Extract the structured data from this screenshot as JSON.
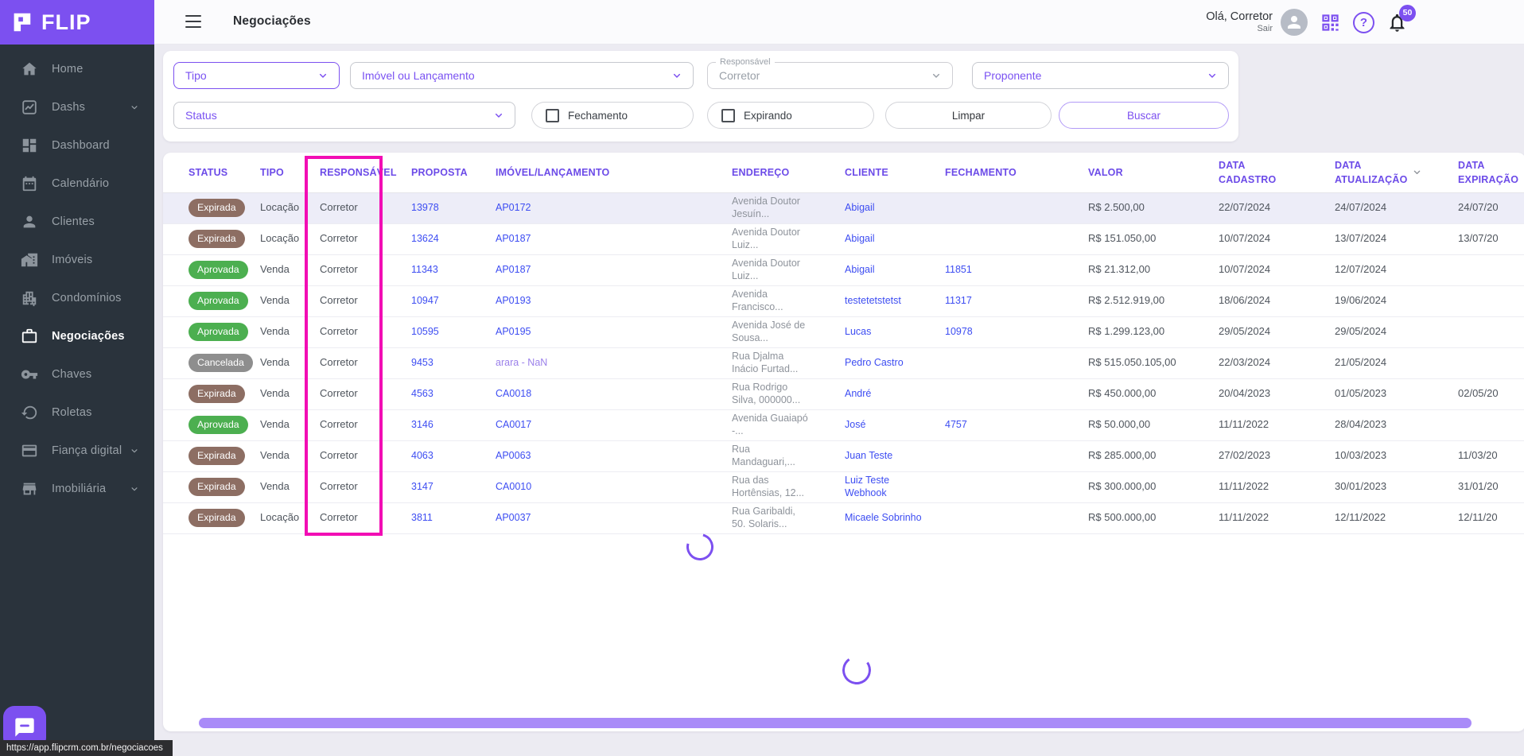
{
  "app": {
    "brand": "FLIP",
    "status_bar_url": "https://app.flipcrm.com.br/negociacoes"
  },
  "colors": {
    "accent": "#7C50F0",
    "header_text": "#6C4BE8",
    "link": "#3D4DF2",
    "link_visited": "#9B80EA",
    "highlight": "#F20DB4",
    "scrollbar": "#A98BF8",
    "filter_text": "#7A52F2",
    "status_colors": {
      "Expirada": "#8D6E63",
      "Aprovada": "#4CAF50",
      "Cancelada": "#8E8E8E"
    }
  },
  "header": {
    "title": "Negociações",
    "greeting": "Olá, Corretor",
    "logout_label": "Sair",
    "notifications_count": "50"
  },
  "sidebar": {
    "items": [
      {
        "label": "Home",
        "icon": "home-icon"
      },
      {
        "label": "Dashs",
        "icon": "chart-icon",
        "expandable": true
      },
      {
        "label": "Dashboard",
        "icon": "dashboard-icon"
      },
      {
        "label": "Calendário",
        "icon": "calendar-icon"
      },
      {
        "label": "Clientes",
        "icon": "person-icon"
      },
      {
        "label": "Imóveis",
        "icon": "house-icon"
      },
      {
        "label": "Condomínios",
        "icon": "building-icon"
      },
      {
        "label": "Negociações",
        "icon": "briefcase-icon",
        "active": true
      },
      {
        "label": "Chaves",
        "icon": "key-icon"
      },
      {
        "label": "Roletas",
        "icon": "history-icon"
      },
      {
        "label": "Fiança digital",
        "icon": "card-icon",
        "expandable": true
      },
      {
        "label": "Imobiliária",
        "icon": "storefront-icon",
        "expandable": true
      }
    ]
  },
  "filters": {
    "tipo": "Tipo",
    "imovel": "Imóvel ou Lançamento",
    "responsavel_label": "Responsável",
    "responsavel_value": "Corretor",
    "proponente": "Proponente",
    "status": "Status",
    "fechamento": "Fechamento",
    "expirando": "Expirando",
    "limpar": "Limpar",
    "buscar": "Buscar"
  },
  "table": {
    "columns": [
      "STATUS",
      "TIPO",
      "RESPONSÁVEL",
      "PROPOSTA",
      "IMÓVEL/LANÇAMENTO",
      "ENDEREÇO",
      "CLIENTE",
      "FECHAMENTO",
      "VALOR",
      "DATA CADASTRO",
      "DATA ATUALIZAÇÃO",
      "DATA EXPIRAÇÃO"
    ],
    "sorted_column": "DATA ATUALIZAÇÃO",
    "highlighted_column": "RESPONSÁVEL",
    "loading": true,
    "rows": [
      {
        "status": "Expirada",
        "tipo": "Locação",
        "responsavel": "Corretor",
        "proposta": "13978",
        "imovel": "AP0172",
        "endereco": "Avenida Doutor Jesuín...",
        "cliente": "Abigail",
        "fechamento": "",
        "valor": "R$ 2.500,00",
        "data_cadastro": "22/07/2024",
        "data_atualizacao": "24/07/2024",
        "data_expiracao": "24/07/20"
      },
      {
        "status": "Expirada",
        "tipo": "Locação",
        "responsavel": "Corretor",
        "proposta": "13624",
        "imovel": "AP0187",
        "endereco": "Avenida Doutor Luiz...",
        "cliente": "Abigail",
        "fechamento": "",
        "valor": "R$ 151.050,00",
        "data_cadastro": "10/07/2024",
        "data_atualizacao": "13/07/2024",
        "data_expiracao": "13/07/20"
      },
      {
        "status": "Aprovada",
        "tipo": "Venda",
        "responsavel": "Corretor",
        "proposta": "11343",
        "imovel": "AP0187",
        "endereco": "Avenida Doutor Luiz...",
        "cliente": "Abigail",
        "fechamento": "11851",
        "valor": "R$ 21.312,00",
        "data_cadastro": "10/07/2024",
        "data_atualizacao": "12/07/2024",
        "data_expiracao": ""
      },
      {
        "status": "Aprovada",
        "tipo": "Venda",
        "responsavel": "Corretor",
        "proposta": "10947",
        "imovel": "AP0193",
        "endereco": "Avenida Francisco...",
        "cliente": "testetetstetst",
        "fechamento": "11317",
        "valor": "R$ 2.512.919,00",
        "data_cadastro": "18/06/2024",
        "data_atualizacao": "19/06/2024",
        "data_expiracao": ""
      },
      {
        "status": "Aprovada",
        "tipo": "Venda",
        "responsavel": "Corretor",
        "proposta": "10595",
        "imovel": "AP0195",
        "endereco": "Avenida José de Sousa...",
        "cliente": "Lucas",
        "fechamento": "10978",
        "valor": "R$ 1.299.123,00",
        "data_cadastro": "29/05/2024",
        "data_atualizacao": "29/05/2024",
        "data_expiracao": ""
      },
      {
        "status": "Cancelada",
        "tipo": "Venda",
        "responsavel": "Corretor",
        "proposta": "9453",
        "imovel": "arara - NaN",
        "imovel_visited": true,
        "endereco": "Rua Djalma Inácio Furtad...",
        "cliente": "Pedro Castro",
        "fechamento": "",
        "valor": "R$ 515.050.105,00",
        "data_cadastro": "22/03/2024",
        "data_atualizacao": "21/05/2024",
        "data_expiracao": ""
      },
      {
        "status": "Expirada",
        "tipo": "Venda",
        "responsavel": "Corretor",
        "proposta": "4563",
        "imovel": "CA0018",
        "endereco": "Rua Rodrigo Silva, 000000...",
        "cliente": "André",
        "fechamento": "",
        "valor": "R$ 450.000,00",
        "data_cadastro": "20/04/2023",
        "data_atualizacao": "01/05/2023",
        "data_expiracao": "02/05/20"
      },
      {
        "status": "Aprovada",
        "tipo": "Venda",
        "responsavel": "Corretor",
        "proposta": "3146",
        "imovel": "CA0017",
        "endereco": "Avenida Guaiapó -...",
        "cliente": "José",
        "fechamento": "4757",
        "valor": "R$ 50.000,00",
        "data_cadastro": "11/11/2022",
        "data_atualizacao": "28/04/2023",
        "data_expiracao": ""
      },
      {
        "status": "Expirada",
        "tipo": "Venda",
        "responsavel": "Corretor",
        "proposta": "4063",
        "imovel": "AP0063",
        "endereco": "Rua Mandaguari,...",
        "cliente": "Juan Teste",
        "fechamento": "",
        "valor": "R$ 285.000,00",
        "data_cadastro": "27/02/2023",
        "data_atualizacao": "10/03/2023",
        "data_expiracao": "11/03/20"
      },
      {
        "status": "Expirada",
        "tipo": "Venda",
        "responsavel": "Corretor",
        "proposta": "3147",
        "imovel": "CA0010",
        "endereco": "Rua das Hortênsias, 12...",
        "cliente": "Luiz Teste Webhook",
        "fechamento": "",
        "valor": "R$ 300.000,00",
        "data_cadastro": "11/11/2022",
        "data_atualizacao": "30/01/2023",
        "data_expiracao": "31/01/20"
      },
      {
        "status": "Expirada",
        "tipo": "Locação",
        "responsavel": "Corretor",
        "proposta": "3811",
        "imovel": "AP0037",
        "endereco": "Rua Garibaldi, 50. Solaris...",
        "cliente": "Micaele Sobrinho",
        "fechamento": "",
        "valor": "R$ 500.000,00",
        "data_cadastro": "11/11/2022",
        "data_atualizacao": "12/11/2022",
        "data_expiracao": "12/11/20"
      }
    ]
  }
}
